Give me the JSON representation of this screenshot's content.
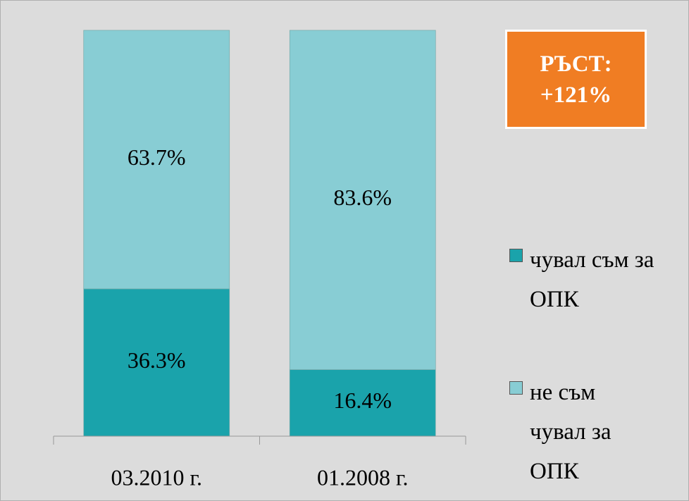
{
  "chart_data": {
    "type": "stacked_bar",
    "categories": [
      "03.2010 г.",
      "01.2008 г."
    ],
    "series": [
      {
        "name": "чувал съм за ОПК",
        "color": "#1aa3ab",
        "values": [
          36.3,
          16.4
        ],
        "value_labels": [
          "36.3%",
          "16.4%"
        ]
      },
      {
        "name": "не съм чувал за ОПК",
        "color": "#88cdd4",
        "values": [
          63.7,
          83.6
        ],
        "value_labels": [
          "63.7%",
          "83.6%"
        ]
      }
    ],
    "ylim": [
      0,
      100
    ],
    "annotation": "РЪСТ: +121%",
    "legend": "right"
  }
}
